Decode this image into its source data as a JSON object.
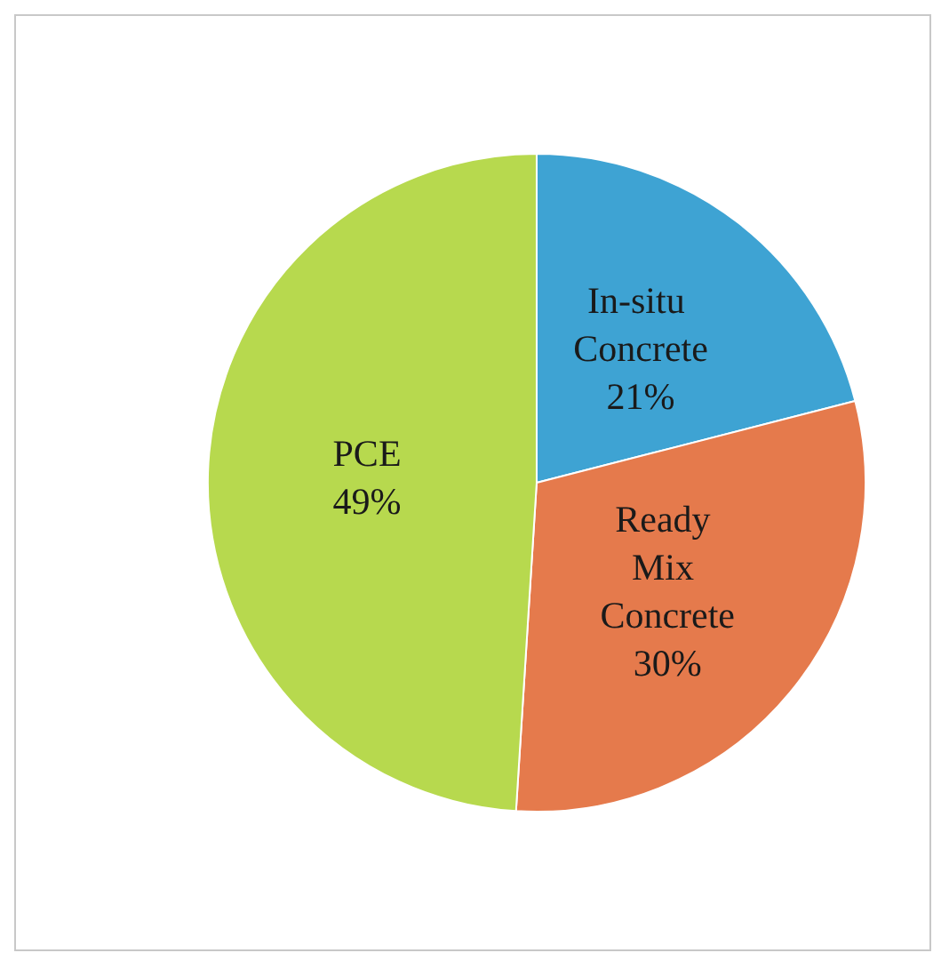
{
  "chart_data": {
    "type": "pie",
    "categories": [
      "In-situ Concrete",
      "Ready Mix Concrete",
      "PCE"
    ],
    "values": [
      21,
      30,
      49
    ],
    "value_labels": [
      "21%",
      "30%",
      "49%"
    ],
    "colors": [
      "#3ea3d3",
      "#e57a4c",
      "#b7d94e"
    ],
    "legend": false
  }
}
